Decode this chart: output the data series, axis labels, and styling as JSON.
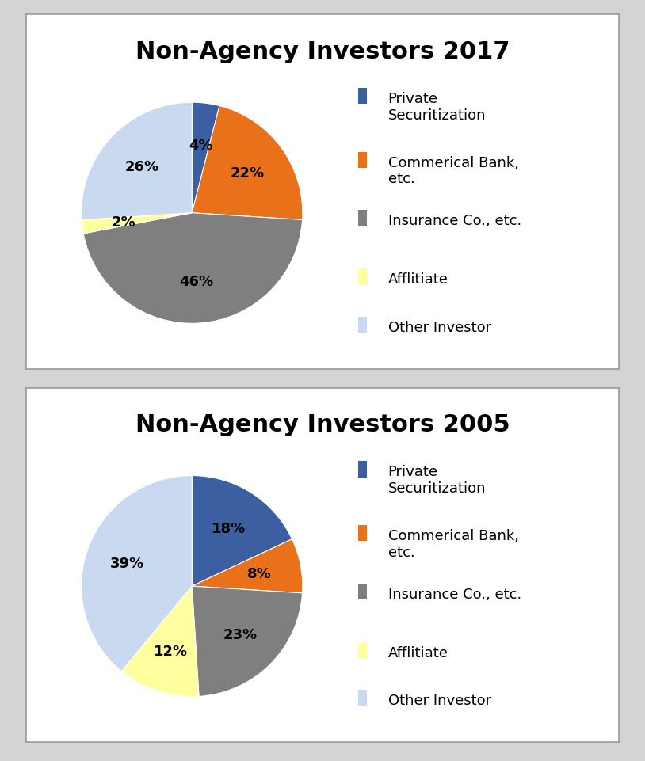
{
  "chart1": {
    "title": "Non-Agency Investors 2017",
    "values": [
      4,
      22,
      46,
      2,
      26
    ],
    "labels": [
      "4%",
      "22%",
      "46%",
      "2%",
      "26%"
    ],
    "colors": [
      "#3b5fa0",
      "#e8711a",
      "#7f7f7f",
      "#ffffa0",
      "#c8d9f0"
    ],
    "legend_labels": [
      "Private\nSecuritization",
      "Commerical Bank,\netc.",
      "Insurance Co., etc.",
      "Afflitiate",
      "Other Investor"
    ],
    "startangle": 90
  },
  "chart2": {
    "title": "Non-Agency Investors 2005",
    "values": [
      18,
      8,
      23,
      12,
      39
    ],
    "labels": [
      "18%",
      "8%",
      "23%",
      "12%",
      "39%"
    ],
    "colors": [
      "#3b5fa0",
      "#e8711a",
      "#7f7f7f",
      "#ffffa0",
      "#c8d9f0"
    ],
    "legend_labels": [
      "Private\nSecuritization",
      "Commerical Bank,\netc.",
      "Insurance Co., etc.",
      "Afflitiate",
      "Other Investor"
    ],
    "startangle": 90
  },
  "title_fontsize": 22,
  "label_fontsize": 13,
  "legend_fontsize": 13,
  "background_color": "#ffffff",
  "outer_bg": "#d4d4d4",
  "border_color": "#999999"
}
